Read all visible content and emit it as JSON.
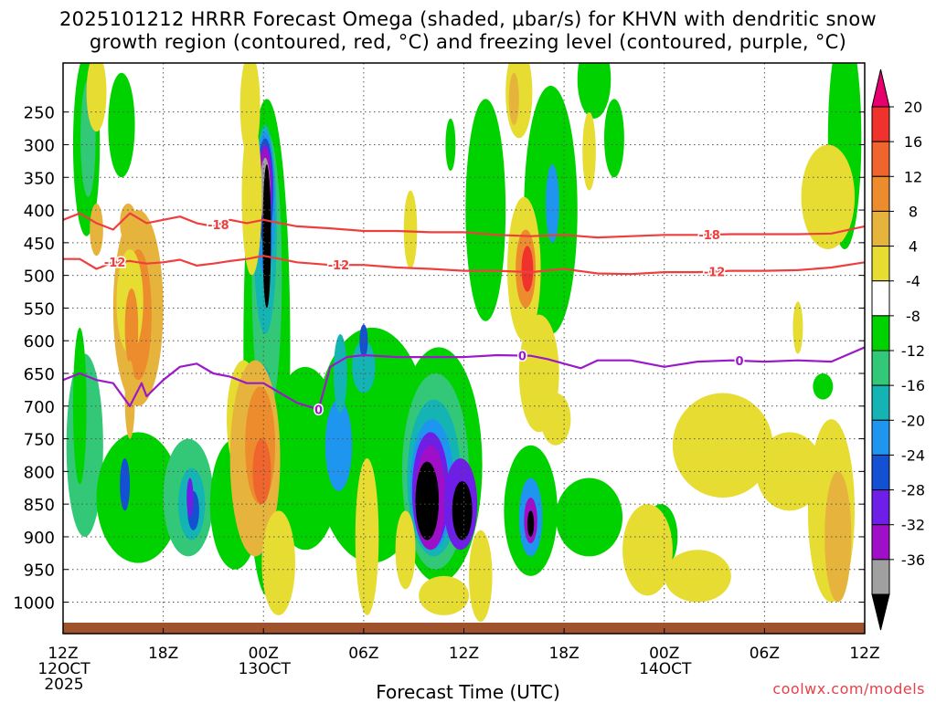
{
  "title": {
    "line1": "2025101212 HRRR Forecast Omega (shaded, μbar/s) for KHVN with dendritic snow",
    "line2": "growth region (contoured, red, °C) and freezing level (contoured, purple, °C)"
  },
  "xlabel": "Forecast Time (UTC)",
  "credit": "coolwx.com/models",
  "colors": {
    "ground": "#a0522d",
    "dendritic_contour": "#ef3e3e",
    "freezing_contour": "#9b19c9"
  },
  "chart_data": {
    "type": "heatmap",
    "x_time_range_hours": [
      0,
      48
    ],
    "y_pressure_range_mb": [
      175,
      1030
    ],
    "y_ticks": [
      250,
      300,
      350,
      400,
      450,
      500,
      550,
      600,
      650,
      700,
      750,
      800,
      850,
      900,
      950,
      1000
    ],
    "x_ticks": [
      {
        "hour": 0,
        "label": "12Z",
        "sub": "12OCT",
        "sub2": "2025"
      },
      {
        "hour": 6,
        "label": "18Z",
        "sub": "",
        "sub2": ""
      },
      {
        "hour": 12,
        "label": "00Z",
        "sub": "13OCT",
        "sub2": ""
      },
      {
        "hour": 18,
        "label": "06Z",
        "sub": "",
        "sub2": ""
      },
      {
        "hour": 24,
        "label": "12Z",
        "sub": "",
        "sub2": ""
      },
      {
        "hour": 30,
        "label": "18Z",
        "sub": "",
        "sub2": ""
      },
      {
        "hour": 36,
        "label": "00Z",
        "sub": "14OCT",
        "sub2": ""
      },
      {
        "hour": 42,
        "label": "06Z",
        "sub": "",
        "sub2": ""
      },
      {
        "hour": 48,
        "label": "12Z",
        "sub": "",
        "sub2": ""
      }
    ],
    "colorbar": {
      "labels": [
        "20",
        "16",
        "12",
        "8",
        "4",
        "-4",
        "-8",
        "-12",
        "-16",
        "-20",
        "-24",
        "-28",
        "-32",
        "-36"
      ],
      "bins": [
        {
          "color": "#e6006e"
        },
        {
          "color": "#f0322d"
        },
        {
          "color": "#f0642d"
        },
        {
          "color": "#ec8c2d"
        },
        {
          "color": "#e6b43c"
        },
        {
          "color": "#e6dc32"
        },
        {
          "color": "#ffffff"
        },
        {
          "color": "#00d200"
        },
        {
          "color": "#32c878"
        },
        {
          "color": "#14b4b4"
        },
        {
          "color": "#1e96f0"
        },
        {
          "color": "#1450d2"
        },
        {
          "color": "#6e1ee6"
        },
        {
          "color": "#a00fc8"
        },
        {
          "color": "#a0a0a0"
        },
        {
          "color": "#000000"
        }
      ]
    },
    "omega_regions": [
      {
        "t": 1.4,
        "p": 300,
        "rt": 0.8,
        "rp": 140,
        "level": 7
      },
      {
        "t": 1.5,
        "p": 290,
        "rt": 0.45,
        "rp": 90,
        "level": 8
      },
      {
        "t": 3.5,
        "p": 270,
        "rt": 0.8,
        "rp": 80,
        "level": 7
      },
      {
        "t": 3.9,
        "p": 420,
        "rt": 0.5,
        "rp": 30,
        "level": 4
      },
      {
        "t": 4.5,
        "p": 550,
        "rt": 1.5,
        "rp": 150,
        "level": 4
      },
      {
        "t": 4.5,
        "p": 560,
        "rt": 0.8,
        "rp": 100,
        "level": 3
      },
      {
        "t": 1.3,
        "p": 760,
        "rt": 1.1,
        "rp": 140,
        "level": 8
      },
      {
        "t": 4.5,
        "p": 840,
        "rt": 2.5,
        "rp": 100,
        "level": 7
      },
      {
        "t": 7.5,
        "p": 840,
        "rt": 1.5,
        "rp": 90,
        "level": 8
      },
      {
        "t": 7.7,
        "p": 850,
        "rt": 0.8,
        "rp": 55,
        "level": 9
      },
      {
        "t": 7.8,
        "p": 860,
        "rt": 0.35,
        "rp": 30,
        "level": 11
      },
      {
        "t": 10.3,
        "p": 850,
        "rt": 1.5,
        "rp": 100,
        "level": 7
      },
      {
        "t": 12.2,
        "p": 610,
        "rt": 1.4,
        "rp": 380,
        "level": 7
      },
      {
        "t": 12.2,
        "p": 500,
        "rt": 0.9,
        "rp": 220,
        "level": 8
      },
      {
        "t": 12.1,
        "p": 430,
        "rt": 0.7,
        "rp": 160,
        "level": 9
      },
      {
        "t": 12.1,
        "p": 390,
        "rt": 0.6,
        "rp": 110,
        "level": 10
      },
      {
        "t": 12.1,
        "p": 370,
        "rt": 0.5,
        "rp": 80,
        "level": 11
      },
      {
        "t": 12.1,
        "p": 360,
        "rt": 0.45,
        "rp": 60,
        "level": 12
      },
      {
        "t": 12.1,
        "p": 360,
        "rt": 0.35,
        "rp": 55,
        "level": 13
      },
      {
        "t": 12.1,
        "p": 370,
        "rt": 0.3,
        "rp": 50,
        "level": 14
      },
      {
        "t": 12.2,
        "p": 440,
        "rt": 0.25,
        "rp": 110,
        "level": 15
      },
      {
        "t": 12.0,
        "p": 890,
        "rt": 0.35,
        "rp": 40,
        "level": 10
      },
      {
        "t": 14.5,
        "p": 780,
        "rt": 2.2,
        "rp": 140,
        "level": 7
      },
      {
        "t": 18.5,
        "p": 760,
        "rt": 3.5,
        "rp": 180,
        "level": 7
      },
      {
        "t": 18.0,
        "p": 640,
        "rt": 0.7,
        "rp": 40,
        "level": 9
      },
      {
        "t": 16.5,
        "p": 760,
        "rt": 0.8,
        "rp": 70,
        "level": 10
      },
      {
        "t": 22.5,
        "p": 790,
        "rt": 2.6,
        "rp": 180,
        "level": 7
      },
      {
        "t": 22.3,
        "p": 800,
        "rt": 2.0,
        "rp": 150,
        "level": 8
      },
      {
        "t": 22.2,
        "p": 810,
        "rt": 1.6,
        "rp": 120,
        "level": 9
      },
      {
        "t": 22.1,
        "p": 820,
        "rt": 1.3,
        "rp": 100,
        "level": 10
      },
      {
        "t": 22.0,
        "p": 830,
        "rt": 1.1,
        "rp": 90,
        "level": 12
      },
      {
        "t": 22.0,
        "p": 840,
        "rt": 0.9,
        "rp": 80,
        "level": 13
      },
      {
        "t": 21.8,
        "p": 845,
        "rt": 0.7,
        "rp": 60,
        "level": 15
      },
      {
        "t": 23.8,
        "p": 850,
        "rt": 1.0,
        "rp": 70,
        "level": 12
      },
      {
        "t": 23.9,
        "p": 860,
        "rt": 0.6,
        "rp": 45,
        "level": 15
      },
      {
        "t": 28.0,
        "p": 860,
        "rt": 1.6,
        "rp": 100,
        "level": 7
      },
      {
        "t": 28.0,
        "p": 870,
        "rt": 0.7,
        "rp": 60,
        "level": 10
      },
      {
        "t": 28.0,
        "p": 875,
        "rt": 0.4,
        "rp": 35,
        "level": 13
      },
      {
        "t": 28.0,
        "p": 880,
        "rt": 0.2,
        "rp": 20,
        "level": 15
      },
      {
        "t": 31.5,
        "p": 870,
        "rt": 2.0,
        "rp": 60,
        "level": 7
      },
      {
        "t": 35.8,
        "p": 900,
        "rt": 1.0,
        "rp": 50,
        "level": 7
      },
      {
        "t": 29.2,
        "p": 400,
        "rt": 1.6,
        "rp": 190,
        "level": 7
      },
      {
        "t": 29.3,
        "p": 390,
        "rt": 0.4,
        "rp": 60,
        "level": 10
      },
      {
        "t": 25.3,
        "p": 400,
        "rt": 1.2,
        "rp": 170,
        "level": 7
      },
      {
        "t": 23.2,
        "p": 300,
        "rt": 0.3,
        "rp": 40,
        "level": 7
      },
      {
        "t": 31.8,
        "p": 200,
        "rt": 1.0,
        "rp": 60,
        "level": 7
      },
      {
        "t": 33.0,
        "p": 290,
        "rt": 0.6,
        "rp": 60,
        "level": 7
      },
      {
        "t": 46.8,
        "p": 290,
        "rt": 1.0,
        "rp": 170,
        "level": 7
      },
      {
        "t": 45.5,
        "p": 670,
        "rt": 0.6,
        "rp": 20,
        "level": 7
      },
      {
        "t": 16.6,
        "p": 650,
        "rt": 0.4,
        "rp": 60,
        "level": 9
      },
      {
        "t": 12.1,
        "p": 680,
        "rt": 0.35,
        "rp": 40,
        "level": 9
      },
      {
        "t": 1.0,
        "p": 700,
        "rt": 0.4,
        "rp": 120,
        "level": 7
      },
      {
        "t": 2.0,
        "p": 220,
        "rt": 0.6,
        "rp": 60,
        "level": 5
      },
      {
        "t": 11.2,
        "p": 240,
        "rt": 0.6,
        "rp": 80,
        "level": 5
      },
      {
        "t": 11.3,
        "p": 380,
        "rt": 0.6,
        "rp": 120,
        "level": 5
      },
      {
        "t": 10.8,
        "p": 720,
        "rt": 1.0,
        "rp": 90,
        "level": 5
      },
      {
        "t": 11.5,
        "p": 780,
        "rt": 1.5,
        "rp": 150,
        "level": 4
      },
      {
        "t": 11.8,
        "p": 760,
        "rt": 0.9,
        "rp": 90,
        "level": 3
      },
      {
        "t": 11.9,
        "p": 800,
        "rt": 0.55,
        "rp": 50,
        "level": 2
      },
      {
        "t": 4.0,
        "p": 540,
        "rt": 0.8,
        "rp": 80,
        "level": 5
      },
      {
        "t": 4.1,
        "p": 580,
        "rt": 0.4,
        "rp": 60,
        "level": 3
      },
      {
        "t": 4.0,
        "p": 690,
        "rt": 0.3,
        "rp": 60,
        "level": 4
      },
      {
        "t": 2.0,
        "p": 430,
        "rt": 0.4,
        "rp": 40,
        "level": 4
      },
      {
        "t": 12.9,
        "p": 940,
        "rt": 1.0,
        "rp": 80,
        "level": 5
      },
      {
        "t": 18.2,
        "p": 900,
        "rt": 0.7,
        "rp": 120,
        "level": 5
      },
      {
        "t": 20.5,
        "p": 920,
        "rt": 0.6,
        "rp": 60,
        "level": 5
      },
      {
        "t": 20.8,
        "p": 430,
        "rt": 0.4,
        "rp": 60,
        "level": 5
      },
      {
        "t": 25.0,
        "p": 960,
        "rt": 0.7,
        "rp": 70,
        "level": 5
      },
      {
        "t": 27.6,
        "p": 490,
        "rt": 1.0,
        "rp": 110,
        "level": 5
      },
      {
        "t": 27.7,
        "p": 490,
        "rt": 0.6,
        "rp": 60,
        "level": 3
      },
      {
        "t": 27.8,
        "p": 490,
        "rt": 0.35,
        "rp": 35,
        "level": 1
      },
      {
        "t": 27.3,
        "p": 220,
        "rt": 0.8,
        "rp": 70,
        "level": 5
      },
      {
        "t": 27.0,
        "p": 230,
        "rt": 0.3,
        "rp": 40,
        "level": 4
      },
      {
        "t": 28.5,
        "p": 650,
        "rt": 1.2,
        "rp": 90,
        "level": 5
      },
      {
        "t": 29.5,
        "p": 720,
        "rt": 0.9,
        "rp": 40,
        "level": 5
      },
      {
        "t": 31.5,
        "p": 310,
        "rt": 0.4,
        "rp": 60,
        "level": 5
      },
      {
        "t": 35.0,
        "p": 920,
        "rt": 1.5,
        "rp": 70,
        "level": 5
      },
      {
        "t": 39.5,
        "p": 760,
        "rt": 3.0,
        "rp": 80,
        "level": 5
      },
      {
        "t": 43.5,
        "p": 800,
        "rt": 2.0,
        "rp": 60,
        "level": 5
      },
      {
        "t": 46.0,
        "p": 860,
        "rt": 1.4,
        "rp": 140,
        "level": 5
      },
      {
        "t": 46.4,
        "p": 900,
        "rt": 0.8,
        "rp": 100,
        "level": 4
      },
      {
        "t": 45.8,
        "p": 380,
        "rt": 1.6,
        "rp": 80,
        "level": 5
      },
      {
        "t": 44.0,
        "p": 580,
        "rt": 0.3,
        "rp": 40,
        "level": 5
      },
      {
        "t": 22.8,
        "p": 990,
        "rt": 1.5,
        "rp": 30,
        "level": 5
      },
      {
        "t": 38.0,
        "p": 960,
        "rt": 2.0,
        "rp": 40,
        "level": 5
      },
      {
        "t": 3.7,
        "p": 820,
        "rt": 0.3,
        "rp": 40,
        "level": 11
      },
      {
        "t": 7.6,
        "p": 840,
        "rt": 0.2,
        "rp": 30,
        "level": 12
      },
      {
        "t": 18.0,
        "p": 600,
        "rt": 0.25,
        "rp": 25,
        "level": 11
      }
    ],
    "dendritic_contours": [
      {
        "label": "-18",
        "points": [
          [
            0,
            415
          ],
          [
            1,
            405
          ],
          [
            2,
            420
          ],
          [
            3,
            430
          ],
          [
            4,
            405
          ],
          [
            5,
            420
          ],
          [
            6,
            415
          ],
          [
            7,
            410
          ],
          [
            8,
            420
          ],
          [
            9,
            425
          ],
          [
            10,
            415
          ],
          [
            11,
            420
          ],
          [
            12,
            415
          ],
          [
            13,
            420
          ],
          [
            14,
            425
          ],
          [
            16,
            428
          ],
          [
            18,
            432
          ],
          [
            20,
            432
          ],
          [
            22,
            434
          ],
          [
            24,
            434
          ],
          [
            26,
            438
          ],
          [
            28,
            440
          ],
          [
            30,
            438
          ],
          [
            32,
            442
          ],
          [
            34,
            440
          ],
          [
            36,
            438
          ],
          [
            38,
            438
          ],
          [
            40,
            437
          ],
          [
            42,
            437
          ],
          [
            44,
            437
          ],
          [
            46,
            436
          ],
          [
            48,
            425
          ]
        ],
        "label_hours": [
          9.3,
          38.7
        ]
      },
      {
        "label": "-12",
        "points": [
          [
            0,
            475
          ],
          [
            1,
            475
          ],
          [
            2,
            490
          ],
          [
            3,
            480
          ],
          [
            4,
            478
          ],
          [
            5,
            482
          ],
          [
            6,
            480
          ],
          [
            7,
            476
          ],
          [
            8,
            485
          ],
          [
            9,
            482
          ],
          [
            10,
            478
          ],
          [
            11,
            475
          ],
          [
            12,
            470
          ],
          [
            13,
            475
          ],
          [
            14,
            480
          ],
          [
            16,
            484
          ],
          [
            18,
            484
          ],
          [
            20,
            488
          ],
          [
            22,
            490
          ],
          [
            24,
            493
          ],
          [
            26,
            493
          ],
          [
            28,
            495
          ],
          [
            30,
            490
          ],
          [
            32,
            497
          ],
          [
            34,
            498
          ],
          [
            36,
            495
          ],
          [
            38,
            495
          ],
          [
            40,
            493
          ],
          [
            42,
            493
          ],
          [
            44,
            492
          ],
          [
            46,
            488
          ],
          [
            48,
            480
          ]
        ],
        "label_hours": [
          3.1,
          16.5,
          39.0
        ]
      }
    ],
    "freezing_contour": {
      "label": "0",
      "points": [
        [
          0,
          660
        ],
        [
          1,
          650
        ],
        [
          2,
          660
        ],
        [
          3,
          665
        ],
        [
          4,
          700
        ],
        [
          4.7,
          665
        ],
        [
          5,
          685
        ],
        [
          6,
          660
        ],
        [
          7,
          640
        ],
        [
          8,
          635
        ],
        [
          9,
          650
        ],
        [
          10,
          655
        ],
        [
          11,
          665
        ],
        [
          12,
          665
        ],
        [
          13,
          680
        ],
        [
          14,
          695
        ],
        [
          15.3,
          705
        ],
        [
          16,
          640
        ],
        [
          17,
          625
        ],
        [
          18,
          622
        ],
        [
          20,
          625
        ],
        [
          22,
          625
        ],
        [
          24,
          625
        ],
        [
          26,
          622
        ],
        [
          28,
          623
        ],
        [
          29,
          628
        ],
        [
          30,
          635
        ],
        [
          31,
          642
        ],
        [
          32,
          630
        ],
        [
          34,
          630
        ],
        [
          36,
          640
        ],
        [
          38,
          632
        ],
        [
          40,
          630
        ],
        [
          42,
          632
        ],
        [
          44,
          630
        ],
        [
          46,
          632
        ],
        [
          48,
          610
        ]
      ],
      "label_hours": [
        15.3,
        27.5,
        40.5
      ]
    }
  }
}
